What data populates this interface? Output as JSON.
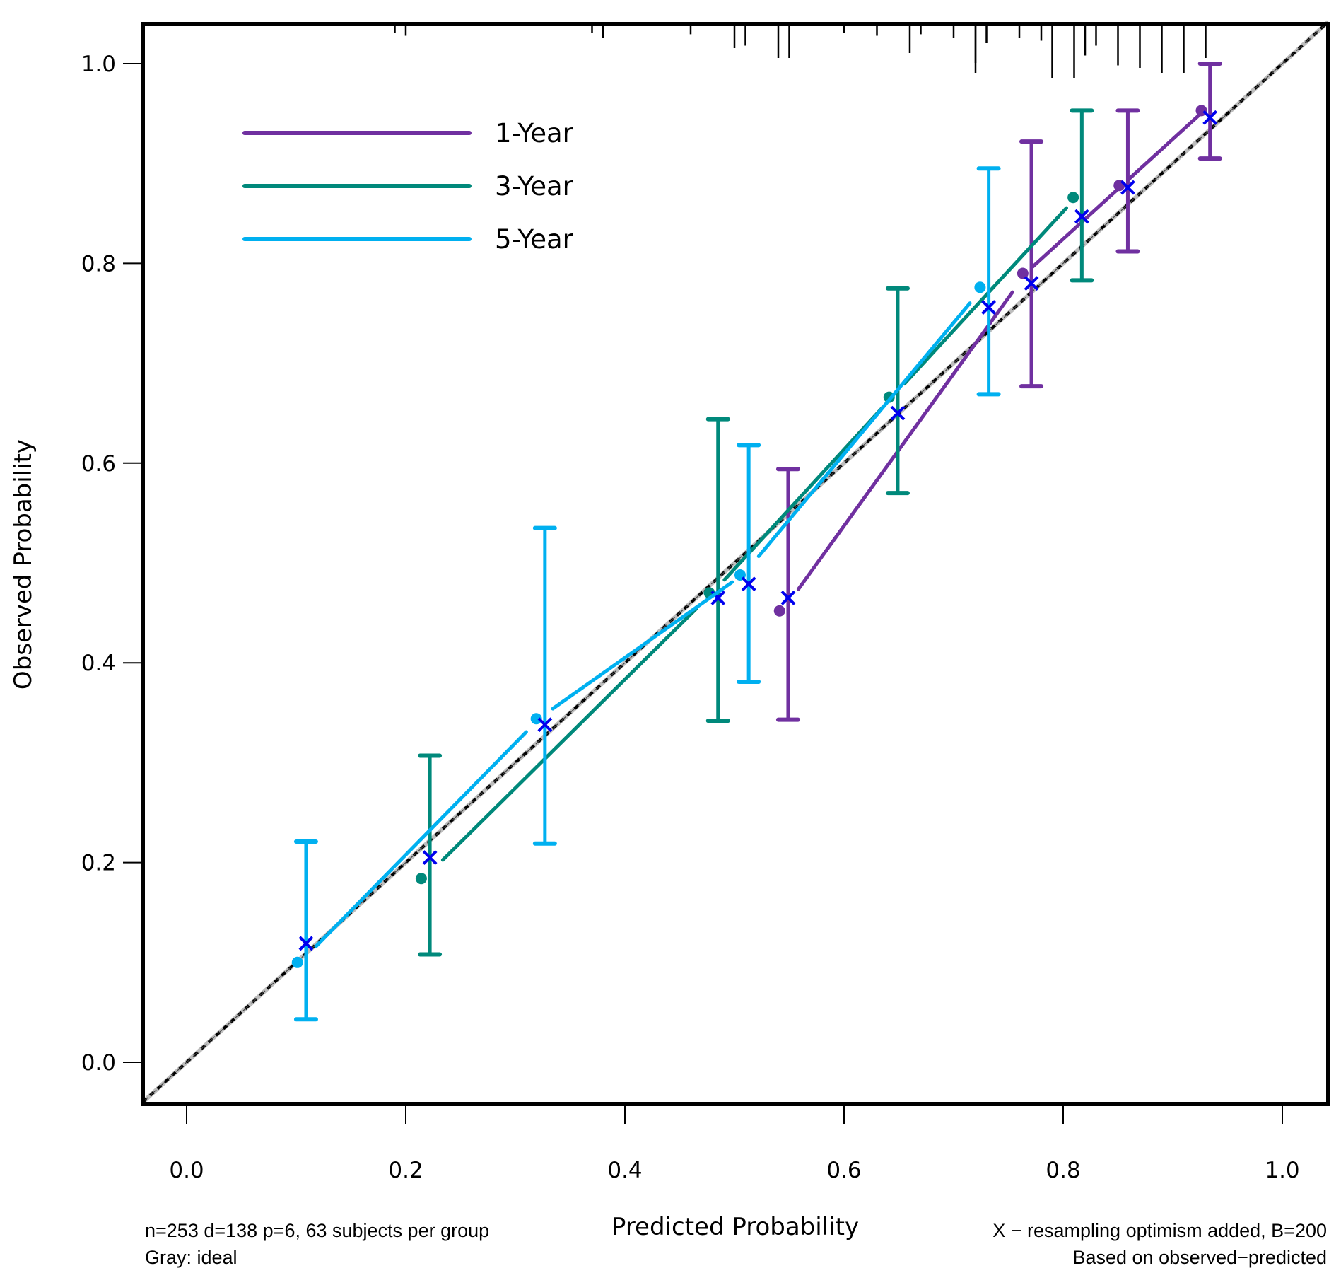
{
  "chart_data": {
    "type": "line",
    "title": "",
    "xlabel": "Predicted Probability",
    "ylabel": "Observed Probability",
    "xlim": [
      -0.04,
      1.04
    ],
    "ylim": [
      -0.03,
      1.04
    ],
    "x_ticks": [
      "0.0",
      "0.2",
      "0.4",
      "0.6",
      "0.8",
      "1.0"
    ],
    "x_tick_values": [
      0,
      0.2,
      0.4,
      0.6,
      0.8,
      1.0
    ],
    "y_ticks": [
      "0.0",
      "0.2",
      "0.4",
      "0.6",
      "0.8",
      "1.0"
    ],
    "y_tick_values": [
      0,
      0.2,
      0.4,
      0.6,
      0.8,
      1.0
    ],
    "grid": false,
    "legend_position": "top-left",
    "ideal_line": {
      "label": "Gray: ideal",
      "color": "#bdbdbd",
      "from": [
        -0.04,
        -0.04
      ],
      "to": [
        1.04,
        1.04
      ]
    },
    "series": [
      {
        "name": "1-Year",
        "color": "#7030a0",
        "predicted": [
          0.545,
          0.767,
          0.855,
          0.93
        ],
        "observed": [
          0.452,
          0.79,
          0.878,
          0.953
        ],
        "optimism_corrected": [
          0.465,
          0.78,
          0.876,
          0.946
        ],
        "ci_lower": [
          0.343,
          0.677,
          0.812,
          0.905
        ],
        "ci_upper": [
          0.594,
          0.922,
          0.953,
          1.0
        ]
      },
      {
        "name": "3-Year",
        "color": "#00897b",
        "predicted": [
          0.218,
          0.481,
          0.645,
          0.813
        ],
        "observed": [
          0.184,
          0.47,
          0.666,
          0.866
        ],
        "optimism_corrected": [
          0.205,
          0.465,
          0.65,
          0.847
        ],
        "ci_lower": [
          0.108,
          0.342,
          0.57,
          0.783
        ],
        "ci_upper": [
          0.307,
          0.644,
          0.775,
          0.953
        ]
      },
      {
        "name": "5-Year",
        "color": "#00b0f0",
        "predicted": [
          0.105,
          0.323,
          0.509,
          0.728
        ],
        "observed": [
          0.1,
          0.344,
          0.488,
          0.776
        ],
        "optimism_corrected": [
          0.119,
          0.338,
          0.479,
          0.756
        ],
        "ci_lower": [
          0.043,
          0.219,
          0.381,
          0.669
        ],
        "ci_upper": [
          0.221,
          0.535,
          0.618,
          0.895
        ]
      }
    ],
    "optimism_marker": {
      "symbol": "x",
      "color": "#0000ee"
    },
    "rug_values": [
      0.19,
      0.2,
      0.37,
      0.38,
      0.46,
      0.5,
      0.51,
      0.54,
      0.55,
      0.6,
      0.63,
      0.66,
      0.67,
      0.7,
      0.72,
      0.72,
      0.73,
      0.76,
      0.78,
      0.79,
      0.81,
      0.82,
      0.83,
      0.85,
      0.87,
      0.89,
      0.91,
      0.93
    ],
    "rug_lengths": [
      0.1,
      0.15,
      0.1,
      0.2,
      0.12,
      0.4,
      0.35,
      0.6,
      0.6,
      0.1,
      0.15,
      0.5,
      0.12,
      0.2,
      0.9,
      0.7,
      0.3,
      0.2,
      0.25,
      1.0,
      1.0,
      0.55,
      0.35,
      0.75,
      0.8,
      0.9,
      0.9,
      0.6
    ],
    "annotations": {
      "bottom_left_line1": "n=253 d=138 p=6, 63 subjects per group",
      "bottom_left_line2": "Gray: ideal",
      "bottom_right_line1": "X − resampling optimism added, B=200",
      "bottom_right_line2": "Based on observed−predicted"
    }
  }
}
